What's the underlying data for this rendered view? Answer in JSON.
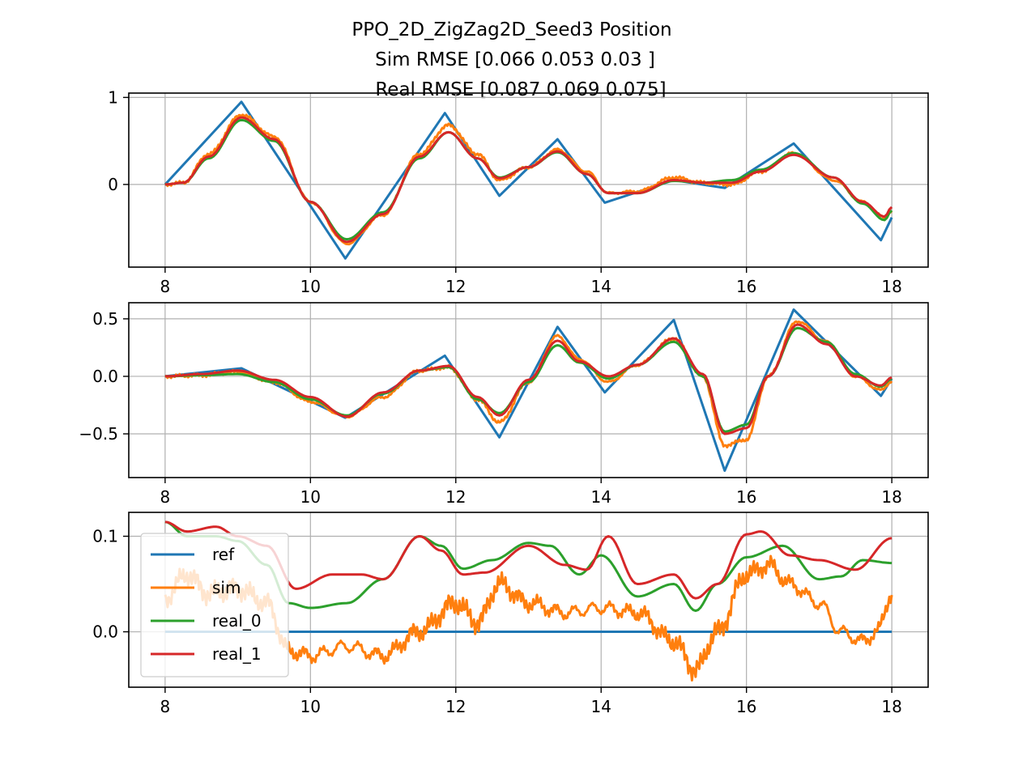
{
  "figure": {
    "title_lines": [
      "PPO_2D_ZigZag2D_Seed3   Position",
      "Sim RMSE [0.066 0.053 0.03 ]",
      "Real RMSE [0.087 0.069 0.075]"
    ]
  },
  "chart_data": [
    {
      "type": "line",
      "subplot": "top",
      "xlim": [
        7.5,
        18.5
      ],
      "ylim": [
        -0.95,
        1.05
      ],
      "xticks": [
        8,
        10,
        12,
        14,
        16,
        18
      ],
      "xtick_labels": [
        "8",
        "10",
        "12",
        "14",
        "16",
        "18"
      ],
      "yticks": [
        0,
        1
      ],
      "ytick_labels": [
        "0",
        "1"
      ],
      "grid": true,
      "series": [
        {
          "name": "ref",
          "color": "#1f77b4",
          "noise": 0,
          "x": [
            8,
            9.05,
            10.48,
            11.85,
            12.6,
            13.4,
            14.05,
            15.0,
            15.7,
            16.65,
            17.85,
            18.0
          ],
          "y": [
            0,
            0.95,
            -0.85,
            0.82,
            -0.13,
            0.52,
            -0.21,
            0.05,
            -0.04,
            0.47,
            -0.64,
            -0.38
          ]
        },
        {
          "name": "sim",
          "color": "#ff7f0e",
          "noise": 0.015,
          "x": [
            8,
            8.25,
            8.6,
            9.05,
            9.5,
            10.0,
            10.5,
            11.0,
            11.5,
            11.9,
            12.3,
            12.6,
            13.0,
            13.4,
            13.8,
            14.1,
            14.5,
            15.0,
            15.4,
            15.8,
            16.2,
            16.65,
            17.2,
            17.6,
            17.9,
            18.0
          ],
          "y": [
            0,
            0.02,
            0.35,
            0.8,
            0.55,
            -0.2,
            -0.68,
            -0.35,
            0.35,
            0.68,
            0.35,
            0.05,
            0.2,
            0.4,
            0.15,
            -0.1,
            -0.08,
            0.08,
            0.02,
            0.0,
            0.15,
            0.36,
            0.05,
            -0.2,
            -0.38,
            -0.3
          ]
        },
        {
          "name": "real_0",
          "color": "#2ca02c",
          "noise": 0,
          "x": [
            8,
            8.25,
            8.6,
            9.05,
            9.5,
            10.0,
            10.5,
            11.0,
            11.5,
            11.9,
            12.3,
            12.6,
            13.0,
            13.4,
            13.8,
            14.1,
            14.5,
            15.0,
            15.4,
            15.8,
            16.2,
            16.65,
            17.2,
            17.6,
            17.9,
            18.0
          ],
          "y": [
            0,
            0.02,
            0.3,
            0.74,
            0.5,
            -0.2,
            -0.63,
            -0.32,
            0.3,
            0.6,
            0.3,
            0.08,
            0.2,
            0.37,
            0.12,
            -0.1,
            -0.1,
            0.04,
            0.02,
            0.05,
            0.17,
            0.36,
            0.08,
            -0.22,
            -0.41,
            -0.3
          ]
        },
        {
          "name": "real_1",
          "color": "#d62728",
          "noise": 0,
          "x": [
            8,
            8.25,
            8.6,
            9.05,
            9.5,
            10.0,
            10.5,
            11.0,
            11.5,
            11.9,
            12.3,
            12.6,
            13.0,
            13.4,
            13.8,
            14.1,
            14.5,
            15.0,
            15.4,
            15.8,
            16.2,
            16.65,
            17.2,
            17.6,
            17.9,
            18.0
          ],
          "y": [
            0,
            0.02,
            0.32,
            0.77,
            0.52,
            -0.2,
            -0.66,
            -0.34,
            0.32,
            0.6,
            0.3,
            0.07,
            0.2,
            0.38,
            0.12,
            -0.1,
            -0.1,
            0.05,
            0.02,
            0.02,
            0.15,
            0.34,
            0.08,
            -0.2,
            -0.37,
            -0.26
          ]
        }
      ]
    },
    {
      "type": "line",
      "subplot": "middle",
      "xlim": [
        7.5,
        18.5
      ],
      "ylim": [
        -0.88,
        0.64
      ],
      "xticks": [
        8,
        10,
        12,
        14,
        16,
        18
      ],
      "xtick_labels": [
        "8",
        "10",
        "12",
        "14",
        "16",
        "18"
      ],
      "yticks": [
        -0.5,
        0.0,
        0.5
      ],
      "ytick_labels": [
        "−0.5",
        "0.0",
        "0.5"
      ],
      "grid": true,
      "series": [
        {
          "name": "ref",
          "color": "#1f77b4",
          "noise": 0,
          "x": [
            8,
            9.05,
            10.48,
            11.85,
            12.6,
            13.4,
            14.05,
            15.0,
            15.7,
            16.65,
            17.85,
            18.0
          ],
          "y": [
            0,
            0.07,
            -0.36,
            0.18,
            -0.53,
            0.43,
            -0.14,
            0.49,
            -0.82,
            0.58,
            -0.17,
            -0.02
          ]
        },
        {
          "name": "sim",
          "color": "#ff7f0e",
          "noise": 0.012,
          "x": [
            8,
            8.5,
            9.0,
            9.5,
            10.0,
            10.5,
            11.0,
            11.5,
            11.9,
            12.3,
            12.6,
            13.0,
            13.4,
            13.7,
            14.1,
            14.5,
            15.0,
            15.4,
            15.7,
            16.0,
            16.3,
            16.7,
            17.1,
            17.5,
            17.85,
            18.0
          ],
          "y": [
            0,
            0.01,
            0.04,
            -0.05,
            -0.22,
            -0.35,
            -0.18,
            0.05,
            0.08,
            -0.2,
            -0.4,
            -0.05,
            0.35,
            0.15,
            -0.05,
            0.1,
            0.33,
            0.0,
            -0.6,
            -0.55,
            0.0,
            0.48,
            0.3,
            0.0,
            -0.12,
            -0.04
          ]
        },
        {
          "name": "real_0",
          "color": "#2ca02c",
          "noise": 0,
          "x": [
            8,
            8.5,
            9.0,
            9.5,
            10.0,
            10.5,
            11.0,
            11.5,
            11.9,
            12.3,
            12.6,
            13.0,
            13.4,
            13.7,
            14.1,
            14.5,
            15.0,
            15.4,
            15.7,
            16.0,
            16.3,
            16.7,
            17.1,
            17.5,
            17.85,
            18.0
          ],
          "y": [
            0,
            0.01,
            0.02,
            -0.05,
            -0.2,
            -0.34,
            -0.15,
            0.05,
            0.08,
            -0.2,
            -0.32,
            -0.05,
            0.27,
            0.12,
            -0.02,
            0.1,
            0.3,
            0.0,
            -0.48,
            -0.42,
            0.0,
            0.42,
            0.3,
            0.02,
            -0.09,
            -0.02
          ]
        },
        {
          "name": "real_1",
          "color": "#d62728",
          "noise": 0,
          "x": [
            8,
            8.5,
            9.0,
            9.5,
            10.0,
            10.5,
            11.0,
            11.5,
            11.9,
            12.3,
            12.6,
            13.0,
            13.4,
            13.7,
            14.1,
            14.5,
            15.0,
            15.4,
            15.7,
            16.0,
            16.3,
            16.7,
            17.1,
            17.5,
            17.85,
            18.0
          ],
          "y": [
            0,
            0.02,
            0.05,
            -0.03,
            -0.18,
            -0.35,
            -0.14,
            0.05,
            0.09,
            -0.18,
            -0.34,
            -0.03,
            0.31,
            0.13,
            0.0,
            0.1,
            0.33,
            0.02,
            -0.5,
            -0.45,
            0.0,
            0.45,
            0.28,
            0.0,
            -0.08,
            -0.01
          ]
        }
      ]
    },
    {
      "type": "line",
      "subplot": "bottom",
      "xlim": [
        7.5,
        18.5
      ],
      "ylim": [
        -0.058,
        0.125
      ],
      "xticks": [
        8,
        10,
        12,
        14,
        16,
        18
      ],
      "xtick_labels": [
        "8",
        "10",
        "12",
        "14",
        "16",
        "18"
      ],
      "yticks": [
        0.0,
        0.1
      ],
      "ytick_labels": [
        "0.0",
        "0.1"
      ],
      "grid": true,
      "legend": {
        "placement": "center-left",
        "entries": [
          "ref",
          "sim",
          "real_0",
          "real_1"
        ]
      },
      "series": [
        {
          "name": "ref",
          "color": "#1f77b4",
          "noise": 0,
          "x": [
            8,
            18
          ],
          "y": [
            0,
            0
          ]
        },
        {
          "name": "sim",
          "color": "#ff7f0e",
          "noise": 0.009,
          "x": [
            8,
            8.3,
            8.6,
            9.0,
            9.4,
            9.7,
            10.0,
            10.5,
            11.0,
            11.5,
            12.0,
            12.3,
            12.6,
            13.0,
            13.5,
            14.0,
            14.5,
            15.0,
            15.3,
            15.6,
            16.0,
            16.3,
            16.6,
            17.0,
            17.3,
            17.6,
            17.8,
            18.0
          ],
          "y": [
            0.035,
            0.06,
            0.04,
            0.045,
            0.03,
            -0.02,
            -0.025,
            -0.015,
            -0.025,
            0.0,
            0.03,
            0.01,
            0.05,
            0.03,
            0.02,
            0.025,
            0.02,
            -0.01,
            -0.04,
            0.0,
            0.06,
            0.07,
            0.05,
            0.03,
            0.0,
            -0.01,
            0.0,
            0.04
          ]
        },
        {
          "name": "real_0",
          "color": "#2ca02c",
          "noise": 0,
          "x": [
            8,
            8.3,
            8.7,
            9.0,
            9.4,
            9.7,
            10.0,
            10.5,
            11.0,
            11.5,
            11.8,
            12.1,
            12.5,
            13.0,
            13.3,
            13.7,
            14.0,
            14.5,
            15.0,
            15.3,
            15.6,
            16.0,
            16.5,
            17.0,
            17.3,
            17.6,
            18.0
          ],
          "y": [
            0.115,
            0.1,
            0.1,
            0.095,
            0.07,
            0.03,
            0.025,
            0.03,
            0.055,
            0.1,
            0.09,
            0.066,
            0.075,
            0.093,
            0.09,
            0.06,
            0.08,
            0.037,
            0.05,
            0.022,
            0.05,
            0.078,
            0.09,
            0.055,
            0.058,
            0.075,
            0.072
          ]
        },
        {
          "name": "real_1",
          "color": "#d62728",
          "noise": 0,
          "x": [
            8,
            8.3,
            8.7,
            9.0,
            9.4,
            9.8,
            10.3,
            10.7,
            11.0,
            11.5,
            11.8,
            12.1,
            12.4,
            13.0,
            13.5,
            13.8,
            14.1,
            14.5,
            15.0,
            15.3,
            15.6,
            16.0,
            16.2,
            16.6,
            17.0,
            17.5,
            18.0
          ],
          "y": [
            0.115,
            0.105,
            0.11,
            0.1,
            0.09,
            0.045,
            0.06,
            0.06,
            0.055,
            0.1,
            0.085,
            0.06,
            0.062,
            0.09,
            0.07,
            0.065,
            0.1,
            0.05,
            0.06,
            0.035,
            0.05,
            0.102,
            0.105,
            0.08,
            0.075,
            0.065,
            0.098
          ]
        }
      ]
    }
  ]
}
